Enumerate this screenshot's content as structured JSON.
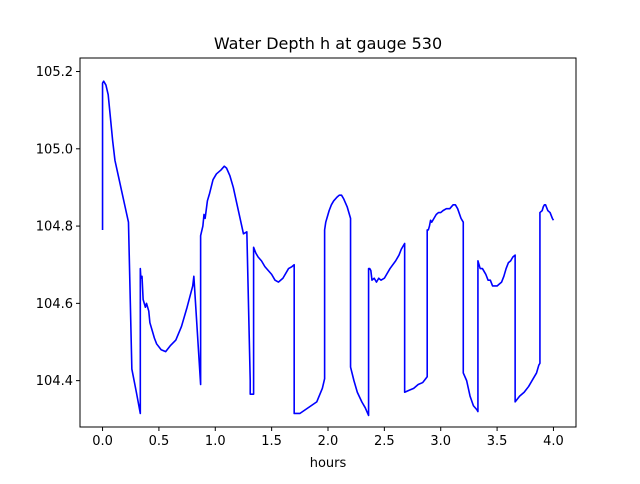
{
  "chart_data": {
    "type": "line",
    "title": "Water Depth h at gauge 530",
    "xlabel": "hours",
    "ylabel": "",
    "xlim": [
      -0.2,
      4.2
    ],
    "ylim": [
      104.28,
      105.235
    ],
    "xticks": [
      0.0,
      0.5,
      1.0,
      1.5,
      2.0,
      2.5,
      3.0,
      3.5,
      4.0
    ],
    "xtick_labels": [
      "0.0",
      "0.5",
      "1.0",
      "1.5",
      "2.0",
      "2.5",
      "3.0",
      "3.5",
      "4.0"
    ],
    "yticks": [
      104.4,
      104.6,
      104.8,
      105.0,
      105.2
    ],
    "ytick_labels": [
      "104.4",
      "104.6",
      "104.8",
      "105.0",
      "105.2"
    ],
    "grid": false,
    "series": [
      {
        "color": "#0000ff",
        "x": [
          0.0,
          0.0,
          0.01,
          0.03,
          0.05,
          0.07,
          0.09,
          0.11,
          0.14,
          0.17,
          0.2,
          0.23,
          0.26,
          0.26,
          0.3,
          0.335,
          0.335,
          0.34,
          0.35,
          0.36,
          0.38,
          0.39,
          0.41,
          0.42,
          0.44,
          0.46,
          0.48,
          0.52,
          0.56,
          0.6,
          0.65,
          0.7,
          0.75,
          0.8,
          0.81,
          0.87,
          0.87,
          0.89,
          0.9,
          0.91,
          0.93,
          0.95,
          0.98,
          1.01,
          1.05,
          1.08,
          1.1,
          1.13,
          1.16,
          1.19,
          1.22,
          1.25,
          1.28,
          1.31,
          1.31,
          1.34,
          1.34,
          1.36,
          1.38,
          1.41,
          1.44,
          1.47,
          1.5,
          1.53,
          1.56,
          1.6,
          1.65,
          1.68,
          1.7,
          1.7,
          1.75,
          1.8,
          1.85,
          1.9,
          1.95,
          1.97,
          1.97,
          1.98,
          2.0,
          2.01,
          2.03,
          2.05,
          2.08,
          2.1,
          2.12,
          2.14,
          2.17,
          2.2,
          2.2,
          2.23,
          2.26,
          2.3,
          2.33,
          2.36,
          2.36,
          2.37,
          2.38,
          2.39,
          2.41,
          2.43,
          2.45,
          2.47,
          2.5,
          2.55,
          2.6,
          2.63,
          2.65,
          2.67,
          2.68,
          2.68,
          2.72,
          2.76,
          2.8,
          2.84,
          2.88,
          2.88,
          2.89,
          2.9,
          2.91,
          2.92,
          2.94,
          2.96,
          2.98,
          3.0,
          3.02,
          3.05,
          3.08,
          3.11,
          3.13,
          3.15,
          3.18,
          3.2,
          3.2,
          3.23,
          3.26,
          3.29,
          3.32,
          3.33,
          3.33,
          3.35,
          3.37,
          3.39,
          3.4,
          3.42,
          3.44,
          3.46,
          3.48,
          3.5,
          3.52,
          3.54,
          3.56,
          3.58,
          3.6,
          3.62,
          3.64,
          3.66,
          3.66,
          3.7,
          3.74,
          3.78,
          3.82,
          3.85,
          3.87,
          3.88,
          3.88,
          3.9,
          3.91,
          3.92,
          3.93,
          3.95,
          3.97,
          3.99,
          4.0
        ],
        "y": [
          104.79,
          105.17,
          105.175,
          105.165,
          105.14,
          105.08,
          105.02,
          104.97,
          104.93,
          104.89,
          104.85,
          104.81,
          104.43,
          104.43,
          104.37,
          104.315,
          104.69,
          104.665,
          104.67,
          104.61,
          104.59,
          104.6,
          104.58,
          104.55,
          104.53,
          104.51,
          104.495,
          104.48,
          104.475,
          104.49,
          104.505,
          104.54,
          104.59,
          104.645,
          104.67,
          104.39,
          104.775,
          104.8,
          104.83,
          104.82,
          104.865,
          104.885,
          104.92,
          104.935,
          104.945,
          104.955,
          104.95,
          104.93,
          104.9,
          104.86,
          104.82,
          104.78,
          104.785,
          104.4,
          104.365,
          104.365,
          104.745,
          104.73,
          104.72,
          104.71,
          104.695,
          104.685,
          104.675,
          104.66,
          104.655,
          104.665,
          104.69,
          104.695,
          104.7,
          104.315,
          104.315,
          104.325,
          104.335,
          104.345,
          104.38,
          104.405,
          104.79,
          104.81,
          104.83,
          104.84,
          104.855,
          104.865,
          104.875,
          104.88,
          104.88,
          104.87,
          104.85,
          104.82,
          104.435,
          104.4,
          104.37,
          104.345,
          104.33,
          104.31,
          104.69,
          104.69,
          104.685,
          104.66,
          104.665,
          104.655,
          104.665,
          104.66,
          104.665,
          104.69,
          104.71,
          104.725,
          104.74,
          104.75,
          104.755,
          104.37,
          104.375,
          104.38,
          104.39,
          104.395,
          104.41,
          104.79,
          104.79,
          104.8,
          104.815,
          104.81,
          104.82,
          104.83,
          104.835,
          104.835,
          104.84,
          104.845,
          104.845,
          104.855,
          104.855,
          104.845,
          104.82,
          104.81,
          104.42,
          104.4,
          104.36,
          104.335,
          104.325,
          104.32,
          104.71,
          104.69,
          104.69,
          104.68,
          104.675,
          104.66,
          104.66,
          104.645,
          104.645,
          104.645,
          104.65,
          104.655,
          104.67,
          104.69,
          104.705,
          104.71,
          104.72,
          104.725,
          104.345,
          104.36,
          104.37,
          104.385,
          104.405,
          104.42,
          104.44,
          104.445,
          104.835,
          104.84,
          104.85,
          104.855,
          104.855,
          104.84,
          104.835,
          104.82,
          104.815
        ]
      }
    ]
  }
}
